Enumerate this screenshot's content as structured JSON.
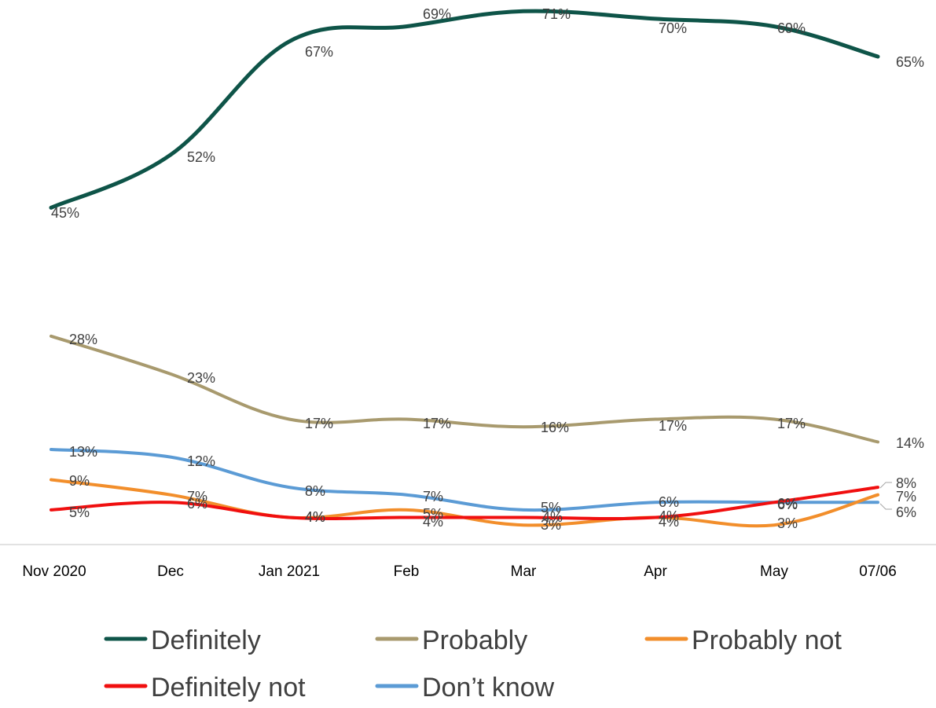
{
  "chart_data": {
    "type": "line",
    "categories": [
      "Nov 2020",
      "Dec",
      "Jan 2021",
      "Feb",
      "Mar",
      "Apr",
      "May",
      "07/06"
    ],
    "series": [
      {
        "name": "Definitely",
        "color": "#0E5448",
        "values": [
          45,
          52,
          67,
          69,
          71,
          70,
          69,
          65
        ]
      },
      {
        "name": "Probably",
        "color": "#A89A6E",
        "values": [
          28,
          23,
          17,
          17,
          16,
          17,
          17,
          14
        ]
      },
      {
        "name": "Probably not",
        "color": "#F28E2B",
        "values": [
          9,
          7,
          4,
          5,
          3,
          4,
          3,
          7
        ]
      },
      {
        "name": "Definitely not",
        "color": "#F00F0F",
        "values": [
          5,
          6,
          4,
          4,
          4,
          4,
          6,
          8
        ]
      },
      {
        "name": "Don’t know",
        "color": "#5B9BD5",
        "values": [
          13,
          12,
          8,
          7,
          5,
          6,
          6,
          6
        ]
      }
    ],
    "data_labels": [
      [
        "45%",
        "52%",
        "67%",
        "69%",
        "71%",
        "70%",
        "69%",
        "65%"
      ],
      [
        "28%",
        "23%",
        "17%",
        "17%",
        "16%",
        "17%",
        "17%",
        "14%"
      ],
      [
        "9%",
        "7%",
        "4%",
        "5%",
        "3%",
        "4%",
        "3%",
        "7%"
      ],
      [
        "5%",
        "6%",
        "4%",
        "4%",
        "4%",
        "4%",
        "6%",
        "8%"
      ],
      [
        "13%",
        "12%",
        "8%",
        "7%",
        "5%",
        "6%",
        "6%",
        "6%"
      ]
    ],
    "legend_position": "bottom",
    "grid": false,
    "ylim": [
      0,
      75
    ]
  }
}
